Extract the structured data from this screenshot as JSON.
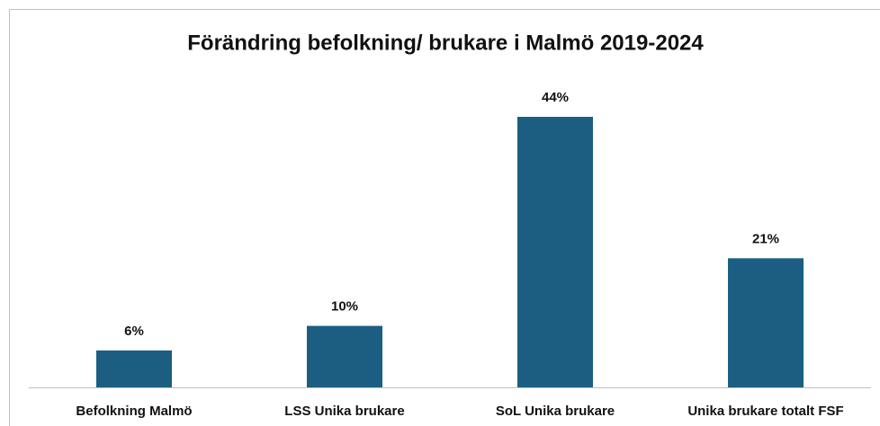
{
  "chart_data": {
    "type": "bar",
    "title": "Förändring befolkning/ brukare i Malmö 2019-2024",
    "categories": [
      "Befolkning Malmö",
      "LSS Unika brukare",
      "SoL Unika brukare",
      "Unika brukare totalt FSF"
    ],
    "values": [
      6,
      10,
      44,
      21
    ],
    "value_labels": [
      "6%",
      "10%",
      "44%",
      "21%"
    ],
    "color": "#1b5e82"
  }
}
